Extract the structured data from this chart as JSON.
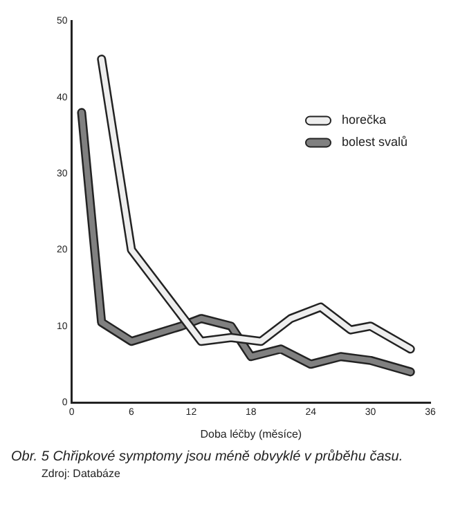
{
  "chart_data": {
    "type": "line",
    "xlabel": "Doba léčby (měsíce)",
    "annotations": [
      "Obr. 5  Chřipkové symptomy jsou méně obvyklé v průběhu času.",
      "Zdroj:  Databáze"
    ],
    "series": [
      {
        "name": "horečka",
        "color": "#eeeeee",
        "x": [
          3,
          6,
          13,
          16,
          19,
          22,
          25,
          28,
          30,
          34
        ],
        "values": [
          45,
          20,
          8,
          8.5,
          8,
          11,
          12.5,
          9.5,
          10,
          7
        ]
      },
      {
        "name": "bolest svalů",
        "color": "#808080",
        "x": [
          1,
          3,
          6,
          11,
          13,
          16,
          18,
          21,
          24,
          27,
          30,
          34
        ],
        "values": [
          38,
          10.5,
          8,
          10,
          11,
          10,
          6,
          7,
          5,
          6,
          5.5,
          4
        ]
      }
    ],
    "xlim": [
      0,
      36
    ],
    "xticks": [
      0,
      6,
      12,
      18,
      24,
      30,
      36
    ],
    "ylim": [
      0,
      50
    ],
    "yticks": [
      0,
      10,
      20,
      30,
      40,
      50
    ],
    "grid": false,
    "legend": "top right",
    "marker": "none",
    "line_style": "solid"
  }
}
